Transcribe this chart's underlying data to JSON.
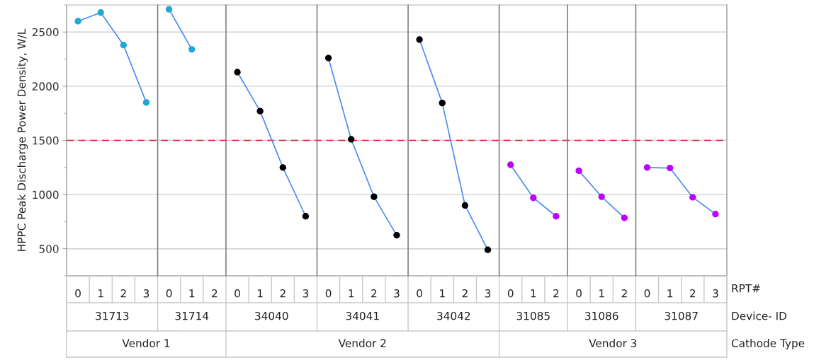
{
  "chart_data": {
    "type": "line",
    "categories": [
      "0",
      "1",
      "2",
      "3",
      "0",
      "1",
      "2",
      "0",
      "1",
      "2",
      "3",
      "0",
      "1",
      "2",
      "3",
      "0",
      "1",
      "2",
      "3",
      "0",
      "1",
      "2",
      "0",
      "1",
      "2",
      "0",
      "1",
      "2",
      "3"
    ],
    "xlabel": "RPT#",
    "ylabel": "HPPC Peak Discharge Power Density, W/L",
    "ylim": [
      250,
      2750
    ],
    "yticks": [
      {
        "value": 250,
        "label": null
      },
      500,
      {
        "value": 750,
        "label": null
      },
      1000,
      {
        "value": 1250,
        "label": null
      },
      1500,
      {
        "value": 1750,
        "label": null
      },
      2000,
      {
        "value": 2250,
        "label": null
      },
      2500,
      {
        "value": 2750,
        "label": null
      }
    ],
    "grid": "y",
    "marker": "circle",
    "line_style": "solid",
    "series": [
      {
        "color": "#4d8af0",
        "colors": [
          "#1fa7d8",
          "#1fa7d8",
          "#1fa7d8",
          "#1fa7d8",
          null,
          null,
          null,
          null,
          null,
          null,
          null,
          null,
          null,
          null,
          null,
          null,
          null,
          null,
          null,
          null,
          null,
          null,
          null,
          null,
          null,
          null,
          null,
          null,
          null
        ],
        "values": [
          2600,
          2680,
          2380,
          1850,
          null,
          null,
          null,
          null,
          null,
          null,
          null,
          null,
          null,
          null,
          null,
          null,
          null,
          null,
          null,
          null,
          null,
          null,
          null,
          null,
          null,
          null,
          null,
          null,
          null
        ]
      },
      {
        "color": "#4d8af0",
        "colors": [
          null,
          null,
          null,
          null,
          "#1fa7d8",
          "#1fa7d8",
          null,
          null,
          null,
          null,
          null,
          null,
          null,
          null,
          null,
          null,
          null,
          null,
          null,
          null,
          null,
          null,
          null,
          null,
          null,
          null,
          null,
          null,
          null
        ],
        "values": [
          null,
          null,
          null,
          null,
          2710,
          2340,
          null,
          null,
          null,
          null,
          null,
          null,
          null,
          null,
          null,
          null,
          null,
          null,
          null,
          null,
          null,
          null,
          null,
          null,
          null,
          null,
          null,
          null,
          null
        ]
      },
      {
        "color": "#4d8af0",
        "colors": [
          null,
          null,
          null,
          null,
          null,
          null,
          null,
          "#000000",
          "#000000",
          "#000000",
          "#000000",
          null,
          null,
          null,
          null,
          null,
          null,
          null,
          null,
          null,
          null,
          null,
          null,
          null,
          null,
          null,
          null,
          null,
          null
        ],
        "values": [
          null,
          null,
          null,
          null,
          null,
          null,
          null,
          2130,
          1770,
          1250,
          800,
          null,
          null,
          null,
          null,
          null,
          null,
          null,
          null,
          null,
          null,
          null,
          null,
          null,
          null,
          null,
          null,
          null,
          null
        ]
      },
      {
        "color": "#4d8af0",
        "colors": [
          null,
          null,
          null,
          null,
          null,
          null,
          null,
          null,
          null,
          null,
          null,
          "#000000",
          "#000000",
          "#000000",
          "#000000",
          null,
          null,
          null,
          null,
          null,
          null,
          null,
          null,
          null,
          null,
          null,
          null,
          null,
          null
        ],
        "values": [
          null,
          null,
          null,
          null,
          null,
          null,
          null,
          null,
          null,
          null,
          null,
          2260,
          1510,
          980,
          625,
          null,
          null,
          null,
          null,
          null,
          null,
          null,
          null,
          null,
          null,
          null,
          null,
          null,
          null
        ]
      },
      {
        "color": "#4d8af0",
        "colors": [
          null,
          null,
          null,
          null,
          null,
          null,
          null,
          null,
          null,
          null,
          null,
          null,
          null,
          null,
          null,
          "#000000",
          "#000000",
          "#000000",
          "#000000",
          null,
          null,
          null,
          null,
          null,
          null,
          null,
          null,
          null,
          null
        ],
        "values": [
          null,
          null,
          null,
          null,
          null,
          null,
          null,
          null,
          null,
          null,
          null,
          null,
          null,
          null,
          null,
          2430,
          1845,
          900,
          490,
          null,
          null,
          null,
          null,
          null,
          null,
          null,
          null,
          null,
          null
        ]
      },
      {
        "color": "#4d8af0",
        "colors": [
          null,
          null,
          null,
          null,
          null,
          null,
          null,
          null,
          null,
          null,
          null,
          null,
          null,
          null,
          null,
          null,
          null,
          null,
          null,
          "#bf00ff",
          "#bf00ff",
          "#bf00ff",
          null,
          null,
          null,
          null,
          null,
          null,
          null
        ],
        "values": [
          null,
          null,
          null,
          null,
          null,
          null,
          null,
          null,
          null,
          null,
          null,
          null,
          null,
          null,
          null,
          null,
          null,
          null,
          null,
          1275,
          970,
          800,
          null,
          null,
          null,
          null,
          null,
          null,
          null
        ]
      },
      {
        "color": "#4d8af0",
        "colors": [
          null,
          null,
          null,
          null,
          null,
          null,
          null,
          null,
          null,
          null,
          null,
          null,
          null,
          null,
          null,
          null,
          null,
          null,
          null,
          null,
          null,
          null,
          "#bf00ff",
          "#bf00ff",
          "#bf00ff",
          null,
          null,
          null,
          null
        ],
        "values": [
          null,
          null,
          null,
          null,
          null,
          null,
          null,
          null,
          null,
          null,
          null,
          null,
          null,
          null,
          null,
          null,
          null,
          null,
          null,
          null,
          null,
          null,
          1220,
          980,
          785,
          null,
          null,
          null,
          null
        ]
      },
      {
        "color": "#4d8af0",
        "colors": [
          null,
          null,
          null,
          null,
          null,
          null,
          null,
          null,
          null,
          null,
          null,
          null,
          null,
          null,
          null,
          null,
          null,
          null,
          null,
          null,
          null,
          null,
          null,
          null,
          null,
          "#bf00ff",
          "#bf00ff",
          "#bf00ff",
          "#bf00ff"
        ],
        "values": [
          null,
          null,
          null,
          null,
          null,
          null,
          null,
          null,
          null,
          null,
          null,
          null,
          null,
          null,
          null,
          null,
          null,
          null,
          null,
          null,
          null,
          null,
          null,
          null,
          null,
          1250,
          1245,
          975,
          820
        ]
      }
    ],
    "ref_lines": [
      {
        "axis": "y",
        "value": 1500,
        "color": "#d62030",
        "line_style": "dashed"
      }
    ],
    "annotations": [
      "31713",
      "31714",
      "34040",
      "34041",
      "34042",
      "31085",
      "31086",
      "31087",
      "Vendor 1",
      "Vendor 2",
      "Vendor 3",
      "Device- ID",
      "Cathode Type"
    ]
  }
}
